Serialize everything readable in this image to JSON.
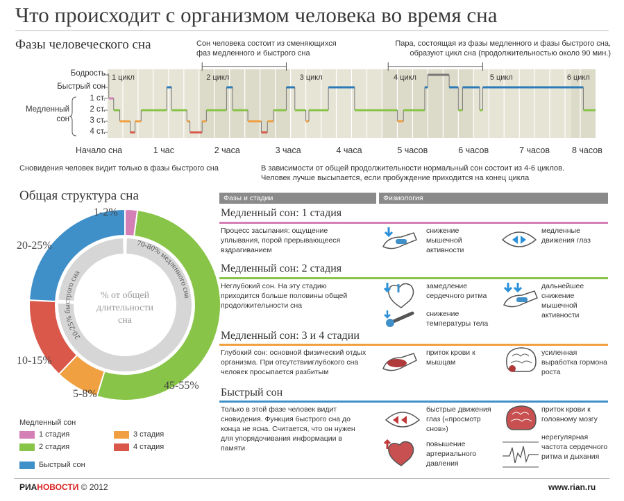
{
  "title": "Что происходит с организмом человека во время сна",
  "phases_section": {
    "title": "Фазы человеческого сна",
    "note_top_left": "Сон человека состоит из сменяющихся фаз медленного и быстрого сна",
    "note_top_right": "Пара, состоящая из фазы медленного и фазы быстрого сна, образуют цикл сна (продолжительностью около 90 мин.)",
    "y_labels": {
      "wake": "Бодрость",
      "rem": "Быстрый сон",
      "s1": "1 ст.",
      "s2": "2 ст.",
      "s3": "3 ст.",
      "s4": "4 ст.",
      "slow_a": "Медленный",
      "slow_b": "сон"
    },
    "x_labels": [
      "Начало сна",
      "1 час",
      "2 часа",
      "3 часа",
      "4 часа",
      "5 часов",
      "6 часов",
      "7 часов",
      "8 часов"
    ],
    "cycles": [
      "1 цикл",
      "2 цикл",
      "3 цикл",
      "4 цикл",
      "5 цикл",
      "6 цикл"
    ],
    "note_bottom_left": "Сновидения человек видит только в фазы быстрого сна",
    "note_bottom_right": "В зависимости от общей продолжительности нормальный сон состоит из 4-6 циклов. Человек лучше высыпается, если пробуждение приходится на конец цикла"
  },
  "chart_data": {
    "type": "line",
    "x": [
      0,
      0.02,
      0.1,
      0.2,
      0.37,
      0.45,
      0.55,
      0.97,
      1.05,
      1.3,
      1.35,
      1.55,
      1.62,
      1.95,
      2.05,
      2.3,
      2.52,
      2.62,
      2.72,
      2.93,
      3.07,
      3.25,
      3.3,
      3.62,
      4.05,
      4.75,
      4.85,
      5.2,
      5.25,
      5.6,
      5.75,
      5.82,
      6.1,
      6.15,
      6.92,
      7.8,
      8.0
    ],
    "y": [
      "wake",
      "s1",
      "s2",
      "s3",
      "s4",
      "s3",
      "s2",
      "rem",
      "s2",
      "s3",
      "s4",
      "s3",
      "s2",
      "rem",
      "s2",
      "s3",
      "s4",
      "s3",
      "s2",
      "rem",
      "s2",
      "s3",
      "s2",
      "rem",
      "s2",
      "s3",
      "s2",
      "rem",
      "wake",
      "rem",
      "s2",
      "rem",
      "s2",
      "rem",
      "rem",
      "s2",
      "s2"
    ],
    "xlabel": "",
    "ylabel": "",
    "xlim": [
      0,
      8
    ],
    "stage_colors": {
      "wake": "#777777",
      "rem": "#2a7ab8",
      "s1": "#d47fb5",
      "s2": "#88c447",
      "s3": "#f0a040",
      "s4": "#d9584a"
    }
  },
  "structure_section": {
    "title": "Общая структура сна",
    "center_text_a": "% от общей",
    "center_text_b": "длительности",
    "center_text_c": "сна",
    "arc_label_slow": "70-80% медленного сна",
    "arc_label_rem": "20-25% быстрого сна",
    "donut": [
      {
        "name": "1 стадия",
        "value": 2,
        "color": "#d47fb5",
        "label": "1-2%"
      },
      {
        "name": "2 стадия",
        "value": 50,
        "color": "#88c447",
        "label": "45-55%"
      },
      {
        "name": "3 стадия",
        "value": 7,
        "color": "#f0a040",
        "label": "5-8%"
      },
      {
        "name": "4 стадия",
        "value": 13,
        "color": "#d9584a",
        "label": "10-15%"
      },
      {
        "name": "Быстрый сон",
        "value": 23,
        "color": "#3f8fc9",
        "label": "20-25%"
      }
    ]
  },
  "legend": {
    "title": "Медленный сон",
    "items": [
      {
        "label": "1 стадия",
        "color": "#d47fb5"
      },
      {
        "label": "3 стадия",
        "color": "#f0a040"
      },
      {
        "label": "2 стадия",
        "color": "#88c447"
      },
      {
        "label": "4 стадия",
        "color": "#d9584a"
      },
      {
        "label": "Быстрый сон",
        "color": "#3f8fc9"
      }
    ]
  },
  "table": {
    "header_phases": "Фазы и стадии",
    "header_physio": "Физиология",
    "rows": [
      {
        "stage": "Медленный сон: 1 стадия",
        "color": "#d47fb5",
        "desc": "Процесс засыпания: ощущение уплывания, порой прерывающееся вздрагиванием",
        "effects": [
          "снижение мышечной активности",
          "медленные движения глаз"
        ]
      },
      {
        "stage": "Медленный сон: 2 стадия",
        "color": "#88c447",
        "desc": "Неглубокий сон. На эту стадию приходится больше половины общей продолжительности сна",
        "effects": [
          "замедление сердечного ритма",
          "дальнейшее снижение мышечной активности",
          "снижение температуры тела"
        ]
      },
      {
        "stage": "Медленный сон: 3 и 4 стадии",
        "color": "#f0a040",
        "desc": "Глубокий сон: основной физический отдых организма. При отсутствииглубокого сна человек просыпается разбитым",
        "effects": [
          "приток крови к мышцам",
          "усиленная выработка гормона роста"
        ]
      },
      {
        "stage": "Быстрый сон",
        "color": "#3f8fc9",
        "desc": "Только в этой фазе человек видит сновидения. Функция быстрого сна до конца не ясна. Считается, что он нужен для упорядочивания информации в памяти",
        "effects": [
          "быстрые движения глаз («просмотр снов»)",
          "приток крови к головному мозгу",
          "повышение артериального давления",
          "нерегулярная частота сердечного ритма и дыхания"
        ]
      }
    ]
  },
  "footer": {
    "brand_a": "РИА",
    "brand_b": "НОВОСТИ",
    "year": "© 2012",
    "site": "www.rian.ru"
  }
}
